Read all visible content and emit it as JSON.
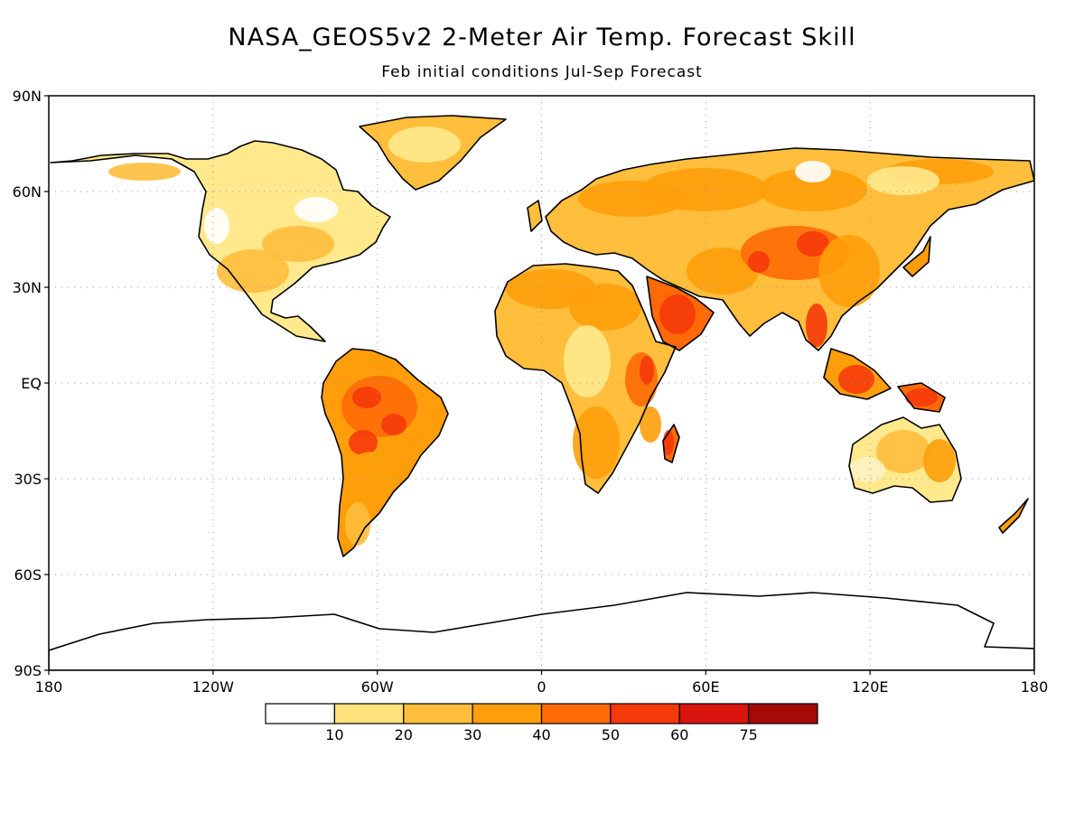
{
  "title": "NASA_GEOS5v2 2-Meter Air Temp. Forecast Skill",
  "subtitle": "Feb initial conditions  Jul-Sep Forecast",
  "map": {
    "lat_labels": [
      {
        "lat": 90,
        "label": "90N"
      },
      {
        "lat": 60,
        "label": "60N"
      },
      {
        "lat": 30,
        "label": "30N"
      },
      {
        "lat": 0,
        "label": "EQ"
      },
      {
        "lat": -30,
        "label": "30S"
      },
      {
        "lat": -60,
        "label": "60S"
      },
      {
        "lat": -90,
        "label": "90S"
      }
    ],
    "lon_labels": [
      {
        "lon": -180,
        "label": "180"
      },
      {
        "lon": -120,
        "label": "120W"
      },
      {
        "lon": -60,
        "label": "60W"
      },
      {
        "lon": 0,
        "label": "0"
      },
      {
        "lon": 60,
        "label": "60E"
      },
      {
        "lon": 120,
        "label": "120E"
      },
      {
        "lon": 180,
        "label": "180"
      }
    ],
    "lon_range": [
      -180,
      180
    ],
    "lat_range": [
      -90,
      90
    ],
    "gridlines": "dotted"
  },
  "colorbar": {
    "colors": [
      "#ffffff",
      "#ffe17d",
      "#ffbe3c",
      "#ff9e0a",
      "#ff6a06",
      "#f53a0a",
      "#d9150d",
      "#a50a04"
    ],
    "labels": [
      "10",
      "20",
      "30",
      "40",
      "50",
      "60",
      "75"
    ]
  },
  "fill_colors": {
    "light": "#ffe98c",
    "mid": "#ffbe3c",
    "orange": "#ff9e0a",
    "dark": "#ff6a06",
    "red": "#f53a0a",
    "deep": "#d9150d"
  }
}
